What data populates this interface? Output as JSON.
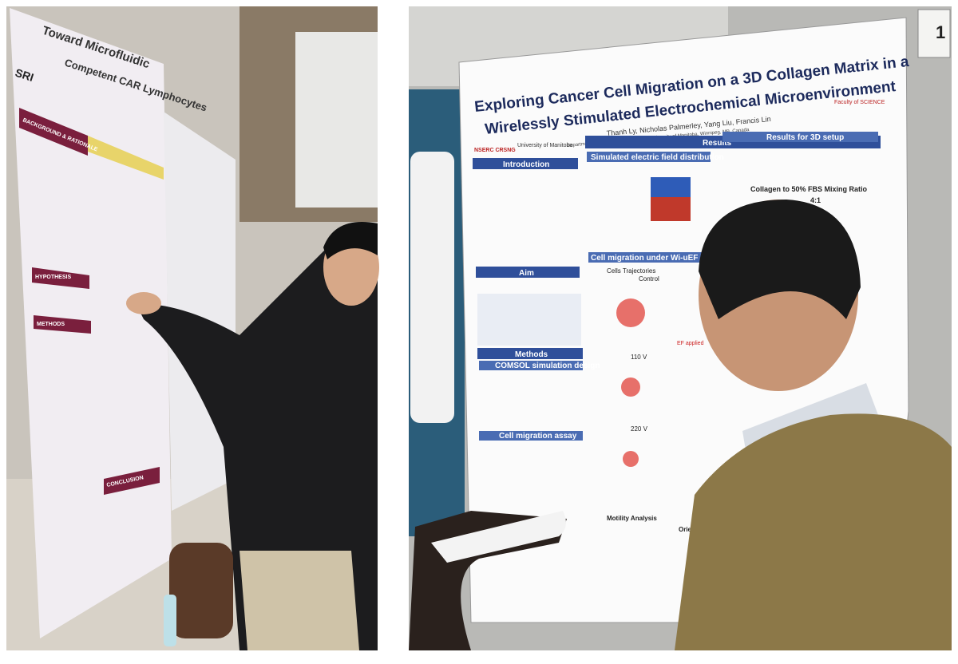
{
  "left_photo": {
    "poster": {
      "title_lines": [
        "Toward Microfluidic",
        "Competent CAR Lymphocytes"
      ],
      "logo": "SRI",
      "sections": [
        "BACKGROUND & RATIONALE",
        "HYPOTHESIS",
        "METHODS",
        "CONCLUSION"
      ]
    }
  },
  "right_photo": {
    "board_number": "1",
    "poster": {
      "title_lines": [
        "Exploring Cancer Cell Migration on a 3D Collagen Matrix in a",
        "Wirelessly Stimulated Electrochemical Microenvironment"
      ],
      "authors": "Thanh Ly, Nicholas Palmerley, Yang Liu, Francis Lin",
      "affiliation": "Department of Physics and Astronomy, University of Manitoba, Winnipeg, MB, Canada",
      "logos": [
        "NSERC CRSNG",
        "University of Manitoba",
        "Faculty of SCIENCE"
      ],
      "left_column": [
        "Introduction",
        "Aim",
        "Methods",
        "COMSOL simulation design",
        "Cell migration assay"
      ],
      "results": {
        "heading": "Results",
        "subsections": [
          "Simulated electric field distribution",
          "Results for 3D setup",
          "Cell migration under Wi-uEF in 2.5D setup",
          "Motility Analysis",
          "Orientation Analysis"
        ],
        "mixing_ratio_title": "Collagen to 50% FBS Mixing Ratio",
        "mixing_ratio": "4:1",
        "trajectory_labels": [
          "Cells Trajectories",
          "Control",
          "110 V",
          "220 V"
        ],
        "ef_label": "EF applied"
      }
    }
  }
}
